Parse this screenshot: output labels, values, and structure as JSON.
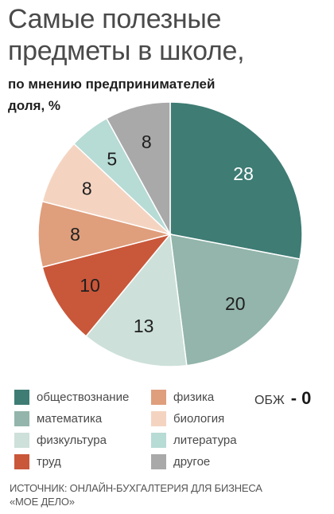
{
  "header": {
    "title": "Самые полезные предметы в школе,",
    "subtitle_line1": "по мнению предпринимателей",
    "subtitle_line2": "доля, %"
  },
  "chart_data": {
    "type": "pie",
    "title": "Самые полезные предметы в школе,",
    "subtitle": "по мнению предпринимателей доля, %",
    "slices": [
      {
        "label": "обществознание",
        "value": 28,
        "color": "#3e7c74",
        "label_color": "#ffffff"
      },
      {
        "label": "математика",
        "value": 20,
        "color": "#93b5ab",
        "label_color": "#1f1f1f"
      },
      {
        "label": "физкультура",
        "value": 13,
        "color": "#cde0da",
        "label_color": "#1f1f1f"
      },
      {
        "label": "труд",
        "value": 10,
        "color": "#c9573a",
        "label_color": "#1f1f1f"
      },
      {
        "label": "физика",
        "value": 8,
        "color": "#df9e7c",
        "label_color": "#1f1f1f"
      },
      {
        "label": "биология",
        "value": 8,
        "color": "#f4d4c1",
        "label_color": "#1f1f1f"
      },
      {
        "label": "литература",
        "value": 5,
        "color": "#b7dbd5",
        "label_color": "#1f1f1f"
      },
      {
        "label": "другое",
        "value": 8,
        "color": "#a9a9a9",
        "label_color": "#1f1f1f"
      }
    ],
    "legend_placement": "bottom",
    "extra_note": {
      "label": "ОБЖ",
      "value": "- 0"
    }
  },
  "legend": [
    {
      "label": "обществознание",
      "color": "#3e7c74"
    },
    {
      "label": "физика",
      "color": "#df9e7c"
    },
    {
      "label": "математика",
      "color": "#93b5ab"
    },
    {
      "label": "биология",
      "color": "#f4d4c1"
    },
    {
      "label": "физкультура",
      "color": "#cde0da"
    },
    {
      "label": "литература",
      "color": "#b7dbd5"
    },
    {
      "label": "труд",
      "color": "#c9573a"
    },
    {
      "label": "другое",
      "color": "#a9a9a9"
    }
  ],
  "source": {
    "line1": "ИСТОЧНИК: ОНЛАЙН-БУХГАЛТЕРИЯ ДЛЯ БИЗНЕСА",
    "line2": "«МОЕ ДЕЛО»"
  }
}
